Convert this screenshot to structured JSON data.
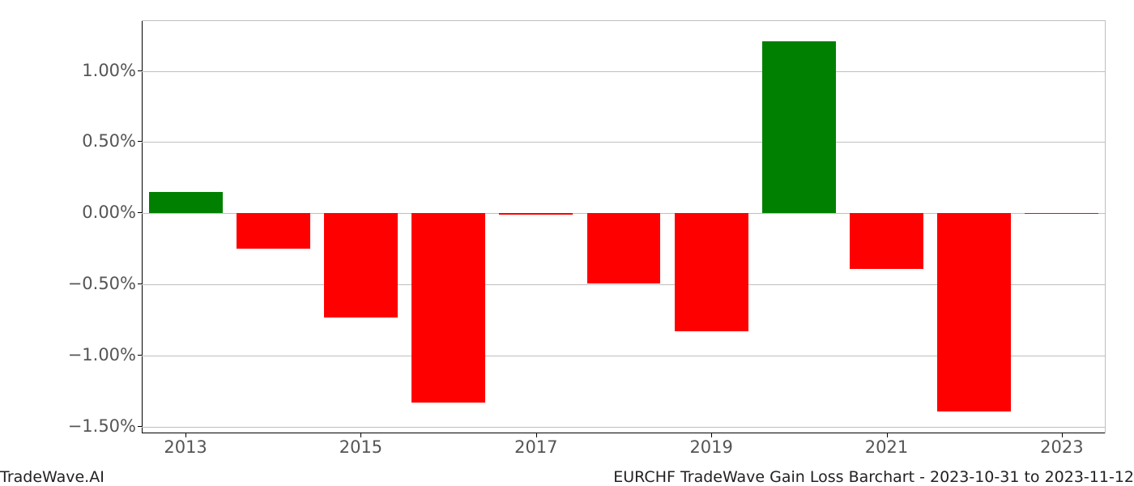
{
  "chart": {
    "type": "bar",
    "categories": [
      "2013",
      "2014",
      "2015",
      "2016",
      "2017",
      "2018",
      "2019",
      "2020",
      "2021",
      "2022",
      "2023"
    ],
    "values": [
      0.15,
      -0.25,
      -0.73,
      -1.33,
      -0.01,
      -0.49,
      -0.83,
      1.21,
      -0.39,
      -1.39,
      0.0
    ],
    "bar_colors": [
      "#008000",
      "#ff0000",
      "#ff0000",
      "#ff0000",
      "#ff0000",
      "#ff0000",
      "#ff0000",
      "#008000",
      "#ff0000",
      "#ff0000",
      "#ff0000"
    ],
    "ylim": [
      -1.55,
      1.35
    ],
    "yticks": [
      -1.5,
      -1.0,
      -0.5,
      0.0,
      0.5,
      1.0
    ],
    "ytick_labels": [
      "−1.50%",
      "−1.00%",
      "−0.50%",
      "0.00%",
      "0.50%",
      "1.00%"
    ],
    "xticks_shown": [
      "2013",
      "2015",
      "2017",
      "2019",
      "2021",
      "2023"
    ],
    "grid_color": "#bfbfbf",
    "background_color": "#ffffff",
    "bar_width": 0.84,
    "tick_fontsize": 21,
    "tick_color": "#555555",
    "axis_color": "#000000"
  },
  "footer": {
    "left": "TradeWave.AI",
    "right": "EURCHF TradeWave Gain Loss Barchart - 2023-10-31 to 2023-11-12",
    "fontsize": 19,
    "color": "#222222"
  }
}
